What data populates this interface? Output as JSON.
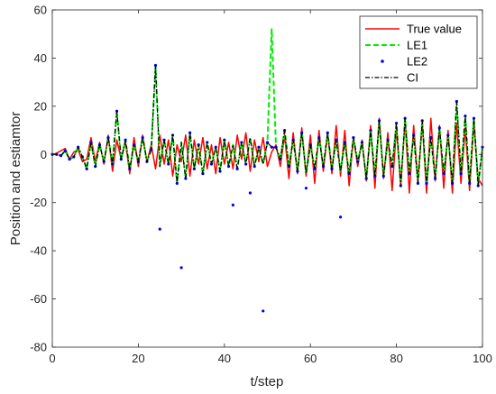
{
  "chart_data": {
    "type": "line",
    "title": "",
    "xlabel": "t/step",
    "ylabel": "Position and estiamtor",
    "xlim": [
      0,
      100
    ],
    "ylim": [
      -80,
      60
    ],
    "xticks": [
      0,
      20,
      40,
      60,
      80,
      100
    ],
    "yticks": [
      -80,
      -60,
      -40,
      -20,
      0,
      20,
      40,
      60
    ],
    "grid": false,
    "legend_position": "top-right",
    "series": [
      {
        "name": "True value",
        "style": "solid",
        "color": "#ff0000",
        "x": [
          0,
          1,
          2,
          3,
          4,
          5,
          6,
          7,
          8,
          9,
          10,
          11,
          12,
          13,
          14,
          15,
          16,
          17,
          18,
          19,
          20,
          21,
          22,
          23,
          24,
          25,
          26,
          27,
          28,
          29,
          30,
          31,
          32,
          33,
          34,
          35,
          36,
          37,
          38,
          39,
          40,
          41,
          42,
          43,
          44,
          45,
          46,
          47,
          48,
          49,
          50,
          51,
          52,
          53,
          54,
          55,
          56,
          57,
          58,
          59,
          60,
          61,
          62,
          63,
          64,
          65,
          66,
          67,
          68,
          69,
          70,
          71,
          72,
          73,
          74,
          75,
          76,
          77,
          78,
          79,
          80,
          81,
          82,
          83,
          84,
          85,
          86,
          87,
          88,
          89,
          90,
          91,
          92,
          93,
          94,
          95,
          96,
          97,
          98,
          99,
          100
        ],
        "y": [
          0,
          0.5,
          1.5,
          2.5,
          -2,
          1,
          2,
          -3,
          -2,
          7,
          -3,
          5,
          -4,
          8,
          -7,
          6,
          -2,
          5,
          -8,
          7,
          -5,
          8,
          -3,
          4,
          -6,
          8,
          -4,
          6,
          -9,
          4,
          -3,
          8,
          -9,
          6,
          -4,
          7,
          -6,
          4,
          -8,
          7,
          -4,
          5,
          -6,
          8,
          -2,
          9,
          -7,
          6,
          -3,
          7,
          -5,
          1,
          4,
          -5,
          8,
          -10,
          9,
          -8,
          11,
          -9,
          8,
          -12,
          10,
          -7,
          9,
          -8,
          12,
          -9,
          10,
          -13,
          7,
          -5,
          6,
          -11,
          12,
          -14,
          15,
          -10,
          9,
          -15,
          11,
          -13,
          14,
          -16,
          12,
          -11,
          13,
          -16,
          15,
          -11,
          12,
          -14,
          10,
          -16,
          13,
          -12,
          11,
          -15,
          13,
          -10,
          -13
        ]
      },
      {
        "name": "LE1",
        "style": "dashed",
        "color": "#00ee00",
        "x": [
          0,
          1,
          2,
          3,
          4,
          5,
          6,
          7,
          8,
          9,
          10,
          11,
          12,
          13,
          14,
          15,
          16,
          17,
          18,
          19,
          20,
          21,
          22,
          23,
          24,
          25,
          26,
          27,
          28,
          29,
          30,
          31,
          32,
          33,
          34,
          35,
          36,
          37,
          38,
          39,
          40,
          41,
          42,
          43,
          44,
          45,
          46,
          47,
          48,
          49,
          50,
          51,
          52,
          53,
          54,
          55,
          56,
          57,
          58,
          59,
          60,
          61,
          62,
          63,
          64,
          65,
          66,
          67,
          68,
          69,
          70,
          71,
          72,
          73,
          74,
          75,
          76,
          77,
          78,
          79,
          80,
          81,
          82,
          83,
          84,
          85,
          86,
          87,
          88,
          89,
          90,
          91,
          92,
          93,
          94,
          95,
          96,
          97,
          98,
          99,
          100
        ],
        "y": [
          0,
          0,
          -0.5,
          1.5,
          -2,
          -1,
          3,
          -1,
          -6,
          5,
          -5,
          4,
          -3,
          7,
          -4,
          18,
          -2,
          6,
          -6,
          4,
          -3,
          7,
          -3,
          2,
          37,
          -5,
          6,
          -4,
          8,
          -12,
          5,
          -10,
          9,
          -6,
          4,
          -8,
          5,
          -4,
          3,
          -7,
          6,
          -5,
          4,
          -6,
          5,
          -4,
          7,
          -5,
          3,
          -4,
          5,
          52,
          3,
          -2,
          10,
          -5,
          6,
          -7,
          9,
          -8,
          4,
          -6,
          7,
          -5,
          9,
          -6,
          6,
          -7,
          5,
          -8,
          7,
          -3,
          5,
          -10,
          10,
          -9,
          14,
          -9,
          6,
          -5,
          13,
          -13,
          15,
          -8,
          8,
          -12,
          14,
          -12,
          7,
          -10,
          11,
          -8,
          8,
          -12,
          22,
          -8,
          16,
          -12,
          15,
          -13,
          3
        ]
      },
      {
        "name": "LE2",
        "style": "dots",
        "color": "#0000ff",
        "x": [
          0,
          1,
          2,
          3,
          4,
          5,
          6,
          7,
          8,
          9,
          10,
          11,
          12,
          13,
          14,
          15,
          16,
          17,
          18,
          19,
          20,
          21,
          22,
          23,
          24,
          25,
          26,
          27,
          28,
          29,
          30,
          31,
          32,
          33,
          34,
          35,
          36,
          37,
          38,
          39,
          40,
          41,
          42,
          43,
          44,
          45,
          46,
          47,
          48,
          49,
          50,
          51,
          52,
          53,
          54,
          55,
          56,
          57,
          58,
          59,
          60,
          61,
          62,
          63,
          64,
          65,
          66,
          67,
          68,
          69,
          70,
          71,
          72,
          73,
          74,
          75,
          76,
          77,
          78,
          79,
          80,
          81,
          82,
          83,
          84,
          85,
          86,
          87,
          88,
          89,
          90,
          91,
          92,
          93,
          94,
          95,
          96,
          97,
          98,
          99,
          100
        ],
        "y": [
          0,
          0,
          -0.5,
          1.5,
          -2,
          -1,
          3,
          -1,
          -6,
          5,
          -5,
          4,
          -3,
          7,
          -4,
          18,
          -2,
          6,
          -6,
          4,
          -3,
          7,
          -3,
          2,
          37,
          -31,
          6,
          -4,
          8,
          -12,
          -47,
          -10,
          9,
          -6,
          4,
          -8,
          5,
          -4,
          3,
          -7,
          6,
          -5,
          -21,
          -6,
          5,
          -4,
          -16,
          -5,
          3,
          -65,
          5,
          3,
          3,
          -2,
          10,
          -5,
          6,
          -7,
          9,
          -14,
          4,
          -6,
          7,
          -5,
          9,
          -6,
          6,
          -26,
          5,
          -8,
          7,
          -3,
          5,
          -10,
          10,
          -9,
          14,
          -9,
          6,
          -5,
          13,
          -13,
          15,
          -8,
          8,
          -12,
          14,
          -12,
          7,
          -10,
          11,
          -8,
          8,
          -12,
          22,
          -8,
          16,
          -12,
          15,
          -13,
          3
        ]
      },
      {
        "name": "CI",
        "style": "dashdot",
        "color": "#000000",
        "x": [
          0,
          1,
          2,
          3,
          4,
          5,
          6,
          7,
          8,
          9,
          10,
          11,
          12,
          13,
          14,
          15,
          16,
          17,
          18,
          19,
          20,
          21,
          22,
          23,
          24,
          25,
          26,
          27,
          28,
          29,
          30,
          31,
          32,
          33,
          34,
          35,
          36,
          37,
          38,
          39,
          40,
          41,
          42,
          43,
          44,
          45,
          46,
          47,
          48,
          49,
          50,
          51,
          52,
          53,
          54,
          55,
          56,
          57,
          58,
          59,
          60,
          61,
          62,
          63,
          64,
          65,
          66,
          67,
          68,
          69,
          70,
          71,
          72,
          73,
          74,
          75,
          76,
          77,
          78,
          79,
          80,
          81,
          82,
          83,
          84,
          85,
          86,
          87,
          88,
          89,
          90,
          91,
          92,
          93,
          94,
          95,
          96,
          97,
          98,
          99,
          100
        ],
        "y": [
          0,
          0,
          -0.5,
          1.5,
          -2,
          -1,
          3,
          -1,
          -6,
          5,
          -5,
          4,
          -3,
          7,
          -4,
          18,
          -2,
          6,
          -6,
          4,
          -3,
          7,
          -3,
          2,
          37,
          -5,
          6,
          -4,
          8,
          -12,
          5,
          -10,
          9,
          -6,
          4,
          -8,
          5,
          -4,
          3,
          -7,
          6,
          -5,
          4,
          -6,
          5,
          -4,
          7,
          -5,
          3,
          -4,
          5,
          3,
          3,
          -2,
          10,
          -5,
          6,
          -7,
          9,
          -8,
          4,
          -6,
          7,
          -5,
          9,
          -6,
          6,
          -7,
          5,
          -8,
          7,
          -3,
          5,
          -10,
          10,
          -9,
          14,
          -9,
          6,
          -5,
          13,
          -13,
          15,
          -8,
          8,
          -12,
          14,
          -12,
          7,
          -10,
          11,
          -8,
          8,
          -12,
          22,
          -8,
          16,
          -12,
          15,
          -13,
          3
        ]
      }
    ]
  }
}
